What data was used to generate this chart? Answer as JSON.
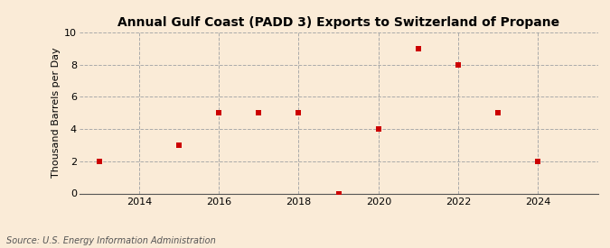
{
  "title": "Annual Gulf Coast (PADD 3) Exports to Switzerland of Propane",
  "ylabel": "Thousand Barrels per Day",
  "source": "Source: U.S. Energy Information Administration",
  "years": [
    2013,
    2015,
    2016,
    2017,
    2018,
    2019,
    2020,
    2021,
    2022,
    2023,
    2024
  ],
  "values": [
    2,
    3,
    5,
    5,
    5,
    0,
    4,
    9,
    8,
    5,
    2
  ],
  "xlim": [
    2012.5,
    2025.5
  ],
  "ylim": [
    0,
    10
  ],
  "yticks": [
    0,
    2,
    4,
    6,
    8,
    10
  ],
  "xticks": [
    2014,
    2016,
    2018,
    2020,
    2022,
    2024
  ],
  "vlines": [
    2014,
    2016,
    2018,
    2020,
    2022,
    2024
  ],
  "marker_color": "#cc0000",
  "marker": "s",
  "marker_size": 18,
  "bg_color": "#faebd7",
  "grid_color": "#aaaaaa",
  "title_fontsize": 10,
  "label_fontsize": 8,
  "tick_fontsize": 8,
  "source_fontsize": 7
}
